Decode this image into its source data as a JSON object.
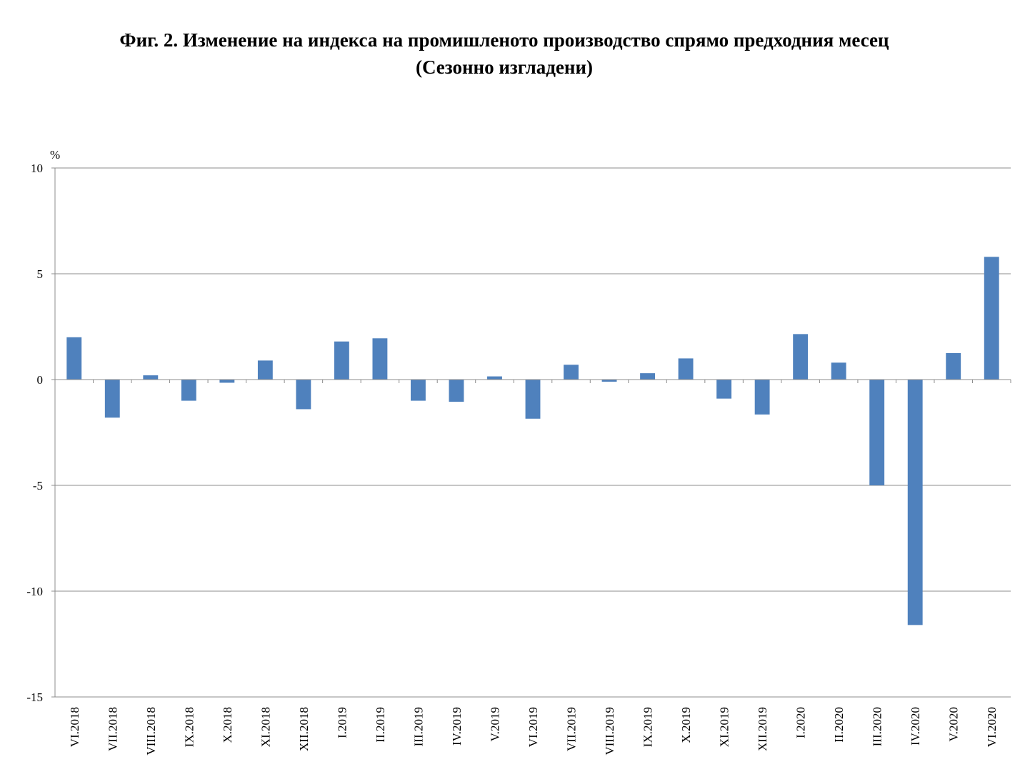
{
  "title_line1": "Фиг. 2. Изменение на индекса на промишленото производство спрямо предходния месец",
  "title_line2": "(Сезонно изгладени)",
  "chart_data": {
    "type": "bar",
    "title": "Фиг. 2. Изменение на индекса на промишленото производство спрямо предходния месец (Сезонно изгладени)",
    "ylabel": "%",
    "ylim": [
      -15,
      10
    ],
    "yticks": [
      10,
      5,
      0,
      -5,
      -10,
      -15
    ],
    "grid": true,
    "bar_color": "#4F81BD",
    "categories": [
      "VI.2018",
      "VII.2018",
      "VIII.2018",
      "IX.2018",
      "X.2018",
      "XI.2018",
      "XII.2018",
      "I.2019",
      "II.2019",
      "III.2019",
      "IV.2019",
      "V.2019",
      "VI.2019",
      "VII.2019",
      "VIII.2019",
      "IX.2019",
      "X.2019",
      "XI.2019",
      "XII.2019",
      "I.2020",
      "II.2020",
      "III.2020",
      "IV.2020",
      "V.2020",
      "VI.2020"
    ],
    "values": [
      2.0,
      -1.8,
      0.2,
      -1.0,
      -0.15,
      0.9,
      -1.4,
      1.8,
      1.95,
      -1.0,
      -1.05,
      0.15,
      -1.85,
      0.7,
      -0.1,
      0.3,
      1.0,
      -0.9,
      -1.65,
      2.15,
      0.8,
      -5.0,
      -11.6,
      1.25,
      5.8
    ]
  }
}
